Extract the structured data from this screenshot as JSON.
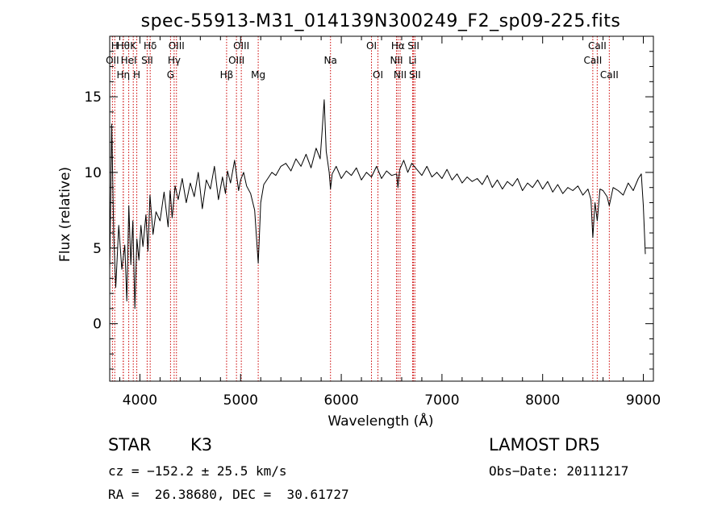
{
  "chart_data": {
    "type": "line",
    "title": "spec-55913-M31_014139N300249_F2_sp09-225.fits",
    "xlabel": "Wavelength (Å)",
    "ylabel": "Flux (relative)",
    "xlim": [
      3700,
      9100
    ],
    "ylim": [
      -3.8,
      19.0
    ],
    "x_ticks": [
      4000,
      5000,
      6000,
      7000,
      8000,
      9000
    ],
    "y_ticks": [
      0,
      5,
      10,
      15
    ],
    "grid": false,
    "line_color": "#000000",
    "marker_color": "#cc0000",
    "series": [
      {
        "x": [
          3700,
          3720,
          3740,
          3760,
          3790,
          3820,
          3850,
          3870,
          3890,
          3910,
          3930,
          3950,
          3970,
          3990,
          4010,
          4030,
          4060,
          4080,
          4100,
          4130,
          4160,
          4200,
          4240,
          4280,
          4300,
          4320,
          4350,
          4380,
          4420,
          4460,
          4500,
          4540,
          4580,
          4620,
          4660,
          4700,
          4740,
          4780,
          4820,
          4850,
          4870,
          4900,
          4940,
          4980,
          5000,
          5030,
          5060,
          5100,
          5140,
          5160,
          5175,
          5185,
          5200,
          5230,
          5270,
          5310,
          5350,
          5400,
          5450,
          5500,
          5550,
          5600,
          5650,
          5700,
          5750,
          5790,
          5810,
          5830,
          5850,
          5880,
          5893,
          5910,
          5950,
          6000,
          6050,
          6100,
          6150,
          6200,
          6250,
          6300,
          6350,
          6400,
          6450,
          6500,
          6550,
          6563,
          6580,
          6620,
          6660,
          6700,
          6750,
          6800,
          6850,
          6900,
          6950,
          7000,
          7050,
          7100,
          7150,
          7200,
          7250,
          7300,
          7350,
          7400,
          7450,
          7500,
          7550,
          7600,
          7650,
          7700,
          7750,
          7800,
          7850,
          7900,
          7950,
          8000,
          8050,
          8100,
          8150,
          8200,
          8250,
          8300,
          8350,
          8400,
          8450,
          8480,
          8498,
          8520,
          8542,
          8570,
          8600,
          8640,
          8662,
          8700,
          8750,
          8800,
          8850,
          8900,
          8950,
          8980,
          9000,
          9020
        ],
        "y": [
          3.5,
          13.2,
          5.8,
          2.4,
          6.5,
          3.6,
          5.2,
          1.5,
          7.8,
          3.9,
          6.8,
          1.0,
          5.6,
          4.2,
          6.5,
          5.1,
          7.2,
          4.8,
          8.5,
          5.9,
          7.4,
          6.8,
          8.7,
          6.4,
          8.8,
          7.0,
          9.1,
          8.2,
          9.6,
          8.0,
          9.3,
          8.4,
          10.0,
          7.6,
          9.5,
          8.9,
          10.4,
          8.2,
          9.7,
          8.6,
          10.1,
          9.3,
          10.8,
          8.8,
          9.5,
          10.0,
          9.1,
          8.6,
          7.5,
          5.5,
          4.0,
          5.6,
          8.0,
          9.2,
          9.6,
          10.0,
          9.8,
          10.4,
          10.6,
          10.1,
          10.9,
          10.4,
          11.2,
          10.3,
          11.6,
          10.9,
          12.8,
          14.8,
          11.4,
          10.0,
          8.9,
          9.9,
          10.4,
          9.6,
          10.1,
          9.8,
          10.3,
          9.5,
          10.0,
          9.7,
          10.4,
          9.6,
          10.1,
          9.8,
          9.9,
          9.0,
          10.2,
          10.8,
          10.0,
          10.6,
          10.2,
          9.8,
          10.4,
          9.7,
          10.0,
          9.6,
          10.2,
          9.5,
          9.9,
          9.3,
          9.7,
          9.4,
          9.6,
          9.2,
          9.8,
          9.0,
          9.5,
          8.9,
          9.4,
          9.1,
          9.6,
          8.8,
          9.3,
          9.0,
          9.5,
          8.9,
          9.4,
          8.7,
          9.2,
          8.6,
          9.0,
          8.8,
          9.1,
          8.5,
          8.9,
          8.2,
          5.7,
          8.0,
          6.8,
          8.9,
          8.8,
          8.4,
          7.8,
          9.0,
          8.8,
          8.5,
          9.3,
          8.8,
          9.6,
          9.9,
          7.8,
          4.6
        ]
      }
    ],
    "spectral_lines": [
      {
        "wavelength": 3727,
        "label": "OII",
        "row": 1
      },
      {
        "wavelength": 3750,
        "label": "H",
        "row": 0
      },
      {
        "wavelength": 3835,
        "label": "Hθ",
        "row": 0
      },
      {
        "wavelength": 3835,
        "label": "Hη",
        "row": 2
      },
      {
        "wavelength": 3889,
        "label": "HeI",
        "row": 1
      },
      {
        "wavelength": 3934,
        "label": "K",
        "row": 0
      },
      {
        "wavelength": 3969,
        "label": "H",
        "row": 2
      },
      {
        "wavelength": 4072,
        "label": "SII",
        "row": 1
      },
      {
        "wavelength": 4102,
        "label": "Hδ",
        "row": 0
      },
      {
        "wavelength": 4304,
        "label": "G",
        "row": 2
      },
      {
        "wavelength": 4340,
        "label": "Hγ",
        "row": 1
      },
      {
        "wavelength": 4363,
        "label": "OIII",
        "row": 0
      },
      {
        "wavelength": 4861,
        "label": "Hβ",
        "row": 2
      },
      {
        "wavelength": 4959,
        "label": "OIII",
        "row": 1
      },
      {
        "wavelength": 5007,
        "label": "OIII",
        "row": 0
      },
      {
        "wavelength": 5175,
        "label": "Mg",
        "row": 2
      },
      {
        "wavelength": 5893,
        "label": "Na",
        "row": 1
      },
      {
        "wavelength": 6300,
        "label": "OI",
        "row": 0
      },
      {
        "wavelength": 6364,
        "label": "OI",
        "row": 2
      },
      {
        "wavelength": 6548,
        "label": "NII",
        "row": 1
      },
      {
        "wavelength": 6563,
        "label": "Hα",
        "row": 0
      },
      {
        "wavelength": 6584,
        "label": "NII",
        "row": 2
      },
      {
        "wavelength": 6708,
        "label": "Li",
        "row": 1
      },
      {
        "wavelength": 6717,
        "label": "SII",
        "row": 0
      },
      {
        "wavelength": 6731,
        "label": "SII",
        "row": 2
      },
      {
        "wavelength": 8498,
        "label": "CaII",
        "row": 1
      },
      {
        "wavelength": 8542,
        "label": "CaII",
        "row": 0
      },
      {
        "wavelength": 8662,
        "label": "CaII",
        "row": 2
      }
    ]
  },
  "info": {
    "class_label": "STAR",
    "subclass": "K3",
    "survey": "LAMOST DR5",
    "cz_line": "cz = −152.2 ± 25.5 km/s",
    "obs_date": "Obs−Date: 20111217",
    "coords": "RA =  26.38680, DEC =  30.61727"
  }
}
